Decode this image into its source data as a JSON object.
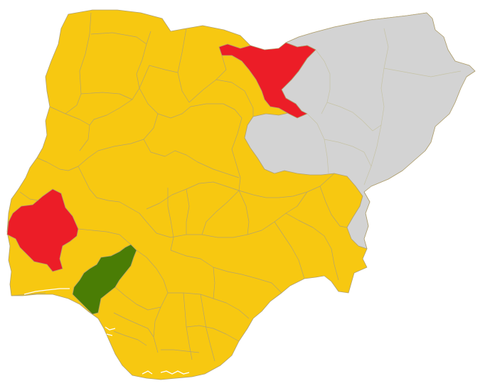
{
  "map": {
    "legend": [],
    "colors": {
      "background": "#ffffff",
      "category_yellow": "#f7c811",
      "category_red": "#ec1d27",
      "category_green": "#4a7d05",
      "category_grey": "#d3d3d3",
      "state_border": "#b0a070"
    },
    "regions": [
      {
        "id": "nationwide-yellow",
        "category": "category_yellow"
      },
      {
        "id": "northeast-grey",
        "category": "category_grey"
      },
      {
        "id": "northern-red",
        "category": "category_red"
      },
      {
        "id": "western-red",
        "category": "category_red"
      },
      {
        "id": "southwest-green",
        "category": "category_green"
      }
    ]
  }
}
